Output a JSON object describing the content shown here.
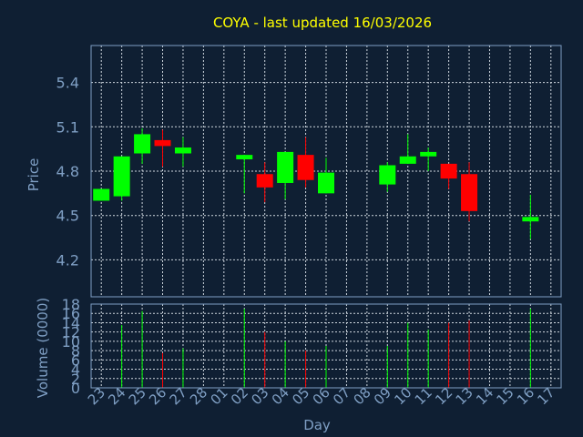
{
  "chart_data": {
    "type": "candlestick",
    "title": "COYA - last updated 16/03/2026",
    "xlabel": "Day",
    "ylabel": "Price",
    "volume_label": "Volume (0000)",
    "price_ylim": [
      3.95,
      5.65
    ],
    "price_ticks": [
      "4.2",
      "4.5",
      "4.8",
      "5.1",
      "5.4"
    ],
    "volume_ylim": [
      0,
      18
    ],
    "volume_ticks": [
      "0",
      "2",
      "4",
      "6",
      "8",
      "10",
      "12",
      "14",
      "16",
      "18"
    ],
    "categories": [
      "23",
      "24",
      "25",
      "26",
      "27",
      "28",
      "01",
      "02",
      "03",
      "04",
      "05",
      "06",
      "07",
      "08",
      "09",
      "10",
      "11",
      "12",
      "13",
      "14",
      "15",
      "16",
      "17"
    ],
    "grid": true,
    "colors": {
      "up": "#00ff00",
      "down": "#ff0000",
      "background": "#0f1f33",
      "axes": "#7f9fc4",
      "title": "#ffff00"
    },
    "candles": [
      {
        "day": 0,
        "open": 4.6,
        "close": 4.68,
        "high": 4.68,
        "low": 4.6,
        "volume": 0
      },
      {
        "day": 1,
        "open": 4.63,
        "close": 4.9,
        "high": 4.9,
        "low": 4.6,
        "volume": 13.5
      },
      {
        "day": 2,
        "open": 4.92,
        "close": 5.05,
        "high": 5.09,
        "low": 4.85,
        "volume": 16.5
      },
      {
        "day": 3,
        "open": 5.01,
        "close": 4.97,
        "high": 5.08,
        "low": 4.83,
        "volume": 7.5
      },
      {
        "day": 4,
        "open": 4.92,
        "close": 4.96,
        "high": 5.03,
        "low": 4.83,
        "volume": 8.5
      },
      {
        "day": 7,
        "open": 4.88,
        "close": 4.91,
        "high": 4.91,
        "low": 4.65,
        "volume": 17.0
      },
      {
        "day": 8,
        "open": 4.78,
        "close": 4.69,
        "high": 4.86,
        "low": 4.59,
        "volume": 12.0
      },
      {
        "day": 9,
        "open": 4.72,
        "close": 4.93,
        "high": 4.93,
        "low": 4.61,
        "volume": 10.0
      },
      {
        "day": 10,
        "open": 4.91,
        "close": 4.74,
        "high": 5.03,
        "low": 4.69,
        "volume": 8.0
      },
      {
        "day": 11,
        "open": 4.65,
        "close": 4.79,
        "high": 4.89,
        "low": 4.65,
        "volume": 9.0
      },
      {
        "day": 14,
        "open": 4.71,
        "close": 4.84,
        "high": 4.86,
        "low": 4.66,
        "volume": 9.0
      },
      {
        "day": 15,
        "open": 4.85,
        "close": 4.9,
        "high": 5.05,
        "low": 4.85,
        "volume": 14.0
      },
      {
        "day": 16,
        "open": 4.9,
        "close": 4.93,
        "high": 4.96,
        "low": 4.8,
        "volume": 12.5
      },
      {
        "day": 17,
        "open": 4.85,
        "close": 4.75,
        "high": 4.85,
        "low": 4.68,
        "volume": 14.0
      },
      {
        "day": 18,
        "open": 4.78,
        "close": 4.53,
        "high": 4.86,
        "low": 4.46,
        "volume": 14.5
      },
      {
        "day": 21,
        "open": 4.46,
        "close": 4.49,
        "high": 4.64,
        "low": 4.34,
        "volume": 17.0
      }
    ]
  }
}
